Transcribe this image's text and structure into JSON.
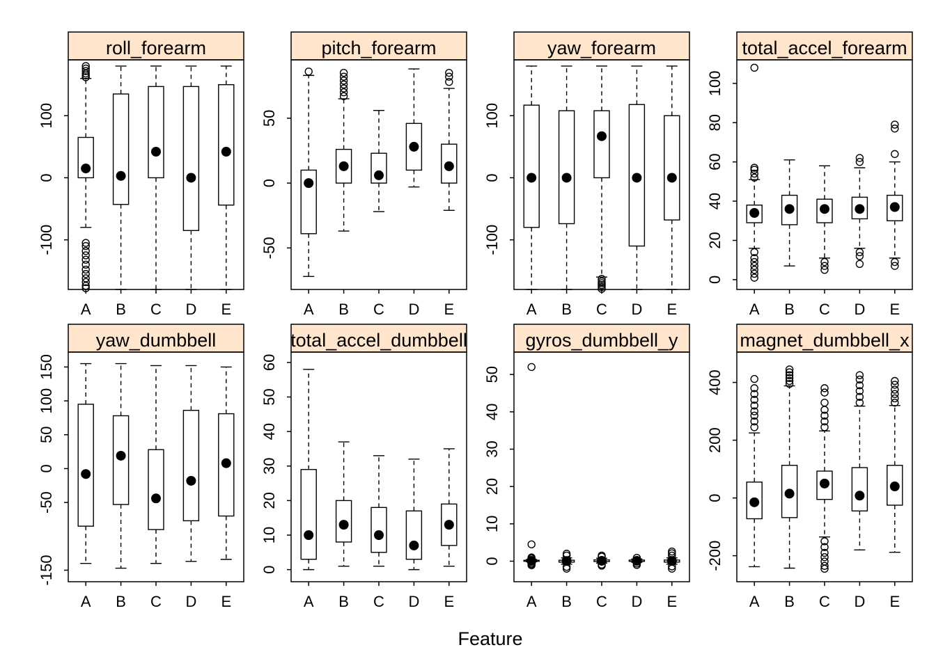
{
  "colors": {
    "strip_fill": "#FFE5CC",
    "ink": "#000000",
    "background": "#FFFFFF"
  },
  "chart_data": {
    "type": "box",
    "xlabel": "Feature",
    "categories": [
      "A",
      "B",
      "C",
      "D",
      "E"
    ],
    "panels": [
      {
        "title": "roll_forearm",
        "ylim": [
          -180,
          190
        ],
        "yticks": [
          -100,
          0,
          100
        ],
        "boxes": [
          {
            "lo": -80,
            "q1": 0,
            "med": 15,
            "q3": 65,
            "hi": 160,
            "out": [
              162,
              165,
              168,
              172,
              176,
              180,
              -105,
              -110,
              -118,
              -125,
              -132,
              -140,
              -148,
              -155,
              -162,
              -168,
              -174,
              -178
            ]
          },
          {
            "lo": -180,
            "q1": -43,
            "med": 3,
            "q3": 135,
            "hi": 180,
            "out": []
          },
          {
            "lo": -180,
            "q1": 0,
            "med": 42,
            "q3": 147,
            "hi": 180,
            "out": []
          },
          {
            "lo": -180,
            "q1": -85,
            "med": 0,
            "q3": 147,
            "hi": 180,
            "out": []
          },
          {
            "lo": -180,
            "q1": -44,
            "med": 42,
            "q3": 150,
            "hi": 180,
            "out": []
          }
        ]
      },
      {
        "title": "pitch_forearm",
        "ylim": [
          -82,
          95
        ],
        "yticks": [
          -50,
          0,
          50
        ],
        "boxes": [
          {
            "lo": -72,
            "q1": -39,
            "med": 0,
            "q3": 10,
            "hi": 83,
            "out": [
              86
            ]
          },
          {
            "lo": -37,
            "q1": 0,
            "med": 13,
            "q3": 26,
            "hi": 65,
            "out": [
              67,
              70,
              73,
              76,
              79,
              82,
              85
            ]
          },
          {
            "lo": -22,
            "q1": 0,
            "med": 6,
            "q3": 23,
            "hi": 56,
            "out": []
          },
          {
            "lo": -3,
            "q1": 10,
            "med": 28,
            "q3": 46,
            "hi": 88,
            "out": []
          },
          {
            "lo": -21,
            "q1": 0,
            "med": 13,
            "q3": 30,
            "hi": 73,
            "out": [
              78,
              82,
              85
            ]
          }
        ]
      },
      {
        "title": "yaw_forearm",
        "ylim": [
          -180,
          190
        ],
        "yticks": [
          -100,
          0,
          100
        ],
        "boxes": [
          {
            "lo": -180,
            "q1": -80,
            "med": 0,
            "q3": 117,
            "hi": 180,
            "out": []
          },
          {
            "lo": -180,
            "q1": -74,
            "med": 0,
            "q3": 108,
            "hi": 180,
            "out": []
          },
          {
            "lo": -160,
            "q1": 0,
            "med": 67,
            "q3": 108,
            "hi": 180,
            "out": [
              -163,
              -167,
              -170,
              -173,
              -176,
              -179
            ]
          },
          {
            "lo": -180,
            "q1": -110,
            "med": 0,
            "q3": 118,
            "hi": 180,
            "out": []
          },
          {
            "lo": -180,
            "q1": -68,
            "med": 0,
            "q3": 100,
            "hi": 180,
            "out": []
          }
        ]
      },
      {
        "title": "total_accel_forearm",
        "ylim": [
          -5,
          112
        ],
        "yticks": [
          0,
          20,
          40,
          60,
          80,
          100
        ],
        "boxes": [
          {
            "lo": 16,
            "q1": 29,
            "med": 34,
            "q3": 38,
            "hi": 51,
            "out": [
              108,
              52,
              54,
              56,
              57,
              14,
              11,
              9,
              7,
              5,
              3,
              1
            ]
          },
          {
            "lo": 7,
            "q1": 28,
            "med": 36,
            "q3": 43,
            "hi": 61,
            "out": []
          },
          {
            "lo": 11,
            "q1": 29,
            "med": 36,
            "q3": 41,
            "hi": 58,
            "out": [
              9,
              7,
              5
            ]
          },
          {
            "lo": 16,
            "q1": 31,
            "med": 36,
            "q3": 42,
            "hi": 57,
            "out": [
              60,
              62,
              14,
              12,
              8
            ]
          },
          {
            "lo": 11,
            "q1": 30,
            "med": 37,
            "q3": 43,
            "hi": 60,
            "out": [
              64,
              77,
              79,
              9,
              7
            ]
          }
        ]
      },
      {
        "title": "yaw_dumbbell",
        "ylim": [
          -167,
          172
        ],
        "yticks": [
          -150,
          -50,
          0,
          50,
          100,
          150
        ],
        "boxes": [
          {
            "lo": -140,
            "q1": -85,
            "med": -8,
            "q3": 95,
            "hi": 155,
            "out": []
          },
          {
            "lo": -147,
            "q1": -53,
            "med": 19,
            "q3": 78,
            "hi": 155,
            "out": []
          },
          {
            "lo": -140,
            "q1": -90,
            "med": -44,
            "q3": 28,
            "hi": 152,
            "out": []
          },
          {
            "lo": -137,
            "q1": -77,
            "med": -18,
            "q3": 86,
            "hi": 152,
            "out": []
          },
          {
            "lo": -134,
            "q1": -70,
            "med": 8,
            "q3": 81,
            "hi": 150,
            "out": []
          }
        ]
      },
      {
        "title": "total_accel_dumbbell",
        "ylim": [
          -3.5,
          63
        ],
        "yticks": [
          0,
          10,
          20,
          30,
          40,
          50,
          60
        ],
        "boxes": [
          {
            "lo": 0,
            "q1": 3,
            "med": 10,
            "q3": 29,
            "hi": 58,
            "out": []
          },
          {
            "lo": 1,
            "q1": 8,
            "med": 13,
            "q3": 20,
            "hi": 37,
            "out": []
          },
          {
            "lo": 1,
            "q1": 5,
            "med": 10,
            "q3": 18,
            "hi": 33,
            "out": []
          },
          {
            "lo": 0,
            "q1": 3,
            "med": 7,
            "q3": 17,
            "hi": 32,
            "out": []
          },
          {
            "lo": 1,
            "q1": 7,
            "med": 13,
            "q3": 19,
            "hi": 35,
            "out": []
          }
        ]
      },
      {
        "title": "gyros_dumbbell_y",
        "ylim": [
          -5.5,
          56
        ],
        "yticks": [
          0,
          10,
          20,
          30,
          40,
          50
        ],
        "boxes": [
          {
            "lo": -0.15,
            "q1": 0,
            "med": 0.1,
            "q3": 0.25,
            "hi": 0.45,
            "out": [
              52,
              4.5,
              1.0,
              0.7,
              -0.5,
              -0.8,
              -1.1
            ]
          },
          {
            "lo": -0.8,
            "q1": -0.25,
            "med": 0.05,
            "q3": 0.25,
            "hi": 0.9,
            "out": [
              1.5,
              2.0,
              -1.5,
              -2.0
            ]
          },
          {
            "lo": -0.5,
            "q1": -0.1,
            "med": 0.1,
            "q3": 0.35,
            "hi": 0.8,
            "out": [
              1.2,
              1.5,
              -0.9,
              -1.2
            ]
          },
          {
            "lo": -0.3,
            "q1": -0.05,
            "med": 0.1,
            "q3": 0.3,
            "hi": 0.6,
            "out": [
              0.9,
              -0.6,
              -1.0
            ]
          },
          {
            "lo": -0.8,
            "q1": -0.25,
            "med": 0.05,
            "q3": 0.3,
            "hi": 0.9,
            "out": [
              1.5,
              2.1,
              2.6,
              -1.4,
              -2.0
            ]
          }
        ]
      },
      {
        "title": "magnet_dumbbell_x",
        "ylim": [
          -290,
          505
        ],
        "yticks": [
          -200,
          0,
          200,
          400
        ],
        "boxes": [
          {
            "lo": -238,
            "q1": -72,
            "med": -15,
            "q3": 55,
            "hi": 225,
            "out": [
              245,
              265,
              285,
              300,
              320,
              340,
              360,
              380,
              412
            ]
          },
          {
            "lo": -243,
            "q1": -68,
            "med": 15,
            "q3": 113,
            "hi": 388,
            "out": [
              395,
              405,
              415,
              425,
              435,
              445
            ]
          },
          {
            "lo": -135,
            "q1": -5,
            "med": 50,
            "q3": 93,
            "hi": 232,
            "out": [
              245,
              265,
              285,
              305,
              330,
              365,
              380,
              -150,
              -170,
              -190,
              -205,
              -220,
              -235,
              -245
            ]
          },
          {
            "lo": -180,
            "q1": -45,
            "med": 8,
            "q3": 105,
            "hi": 318,
            "out": [
              330,
              350,
              370,
              390,
              410,
              425
            ]
          },
          {
            "lo": -188,
            "q1": -25,
            "med": 40,
            "q3": 113,
            "hi": 320,
            "out": [
              330,
              345,
              360,
              375,
              392,
              405
            ]
          }
        ]
      }
    ]
  }
}
